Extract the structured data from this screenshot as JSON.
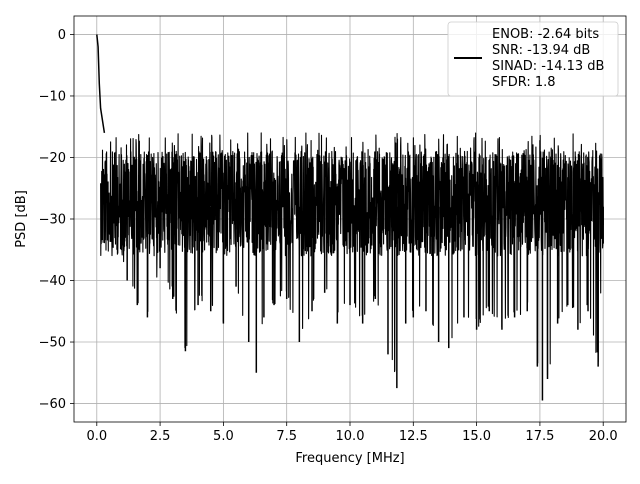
{
  "chart_data": {
    "type": "line",
    "title": "",
    "xlabel": "Frequency [MHz]",
    "ylabel": "PSD [dB]",
    "xlim": [
      -0.9,
      20.9
    ],
    "ylim": [
      -63,
      3
    ],
    "xticks": [
      0.0,
      2.5,
      5.0,
      7.5,
      10.0,
      12.5,
      15.0,
      17.5,
      20.0
    ],
    "xtick_labels": [
      "0.0",
      "2.5",
      "5.0",
      "7.5",
      "10.0",
      "12.5",
      "15.0",
      "17.5",
      "20.0"
    ],
    "yticks": [
      0,
      -10,
      -20,
      -30,
      -40,
      -50,
      -60
    ],
    "ytick_labels": [
      "0",
      "−10",
      "−20",
      "−30",
      "−40",
      "−50",
      "−60"
    ],
    "grid": true,
    "legend_position": "top-right",
    "series": [
      {
        "name": "ENOB: -2.64 bits\nSNR: -13.94 dB\nSINAD: -14.13 dB\nSFDR: 1.8",
        "color": "#000000",
        "x": [
          0.0,
          0.05,
          0.1,
          0.15,
          0.3,
          0.5,
          0.8,
          1.2,
          1.6,
          2.0,
          2.5,
          3.0,
          3.5,
          4.0,
          4.5,
          5.0,
          5.5,
          6.0,
          6.3,
          6.6,
          7.0,
          7.5,
          8.0,
          8.5,
          9.0,
          9.5,
          10.0,
          10.5,
          11.0,
          11.5,
          11.85,
          12.2,
          12.5,
          13.0,
          13.5,
          13.9,
          14.5,
          15.0,
          15.5,
          16.0,
          16.5,
          17.0,
          17.4,
          17.6,
          17.8,
          18.2,
          18.6,
          19.0,
          19.4,
          19.8,
          20.0
        ],
        "y": [
          0.0,
          -2.0,
          -8.0,
          -12.0,
          -16.0,
          -32.0,
          -35.0,
          -40.0,
          -44.0,
          -46.0,
          -38.0,
          -43.0,
          -51.5,
          -44.0,
          -45.0,
          -47.0,
          -41.0,
          -50.0,
          -55.0,
          -46.0,
          -44.0,
          -43.0,
          -50.0,
          -45.0,
          -42.0,
          -47.0,
          -44.0,
          -47.0,
          -43.0,
          -52.0,
          -57.5,
          -47.0,
          -46.0,
          -45.0,
          -50.0,
          -51.0,
          -46.0,
          -48.0,
          -45.0,
          -48.0,
          -46.0,
          -45.0,
          -54.0,
          -59.5,
          -56.0,
          -47.0,
          -44.0,
          -48.0,
          -45.0,
          -54.0,
          -34.0
        ]
      }
    ]
  }
}
